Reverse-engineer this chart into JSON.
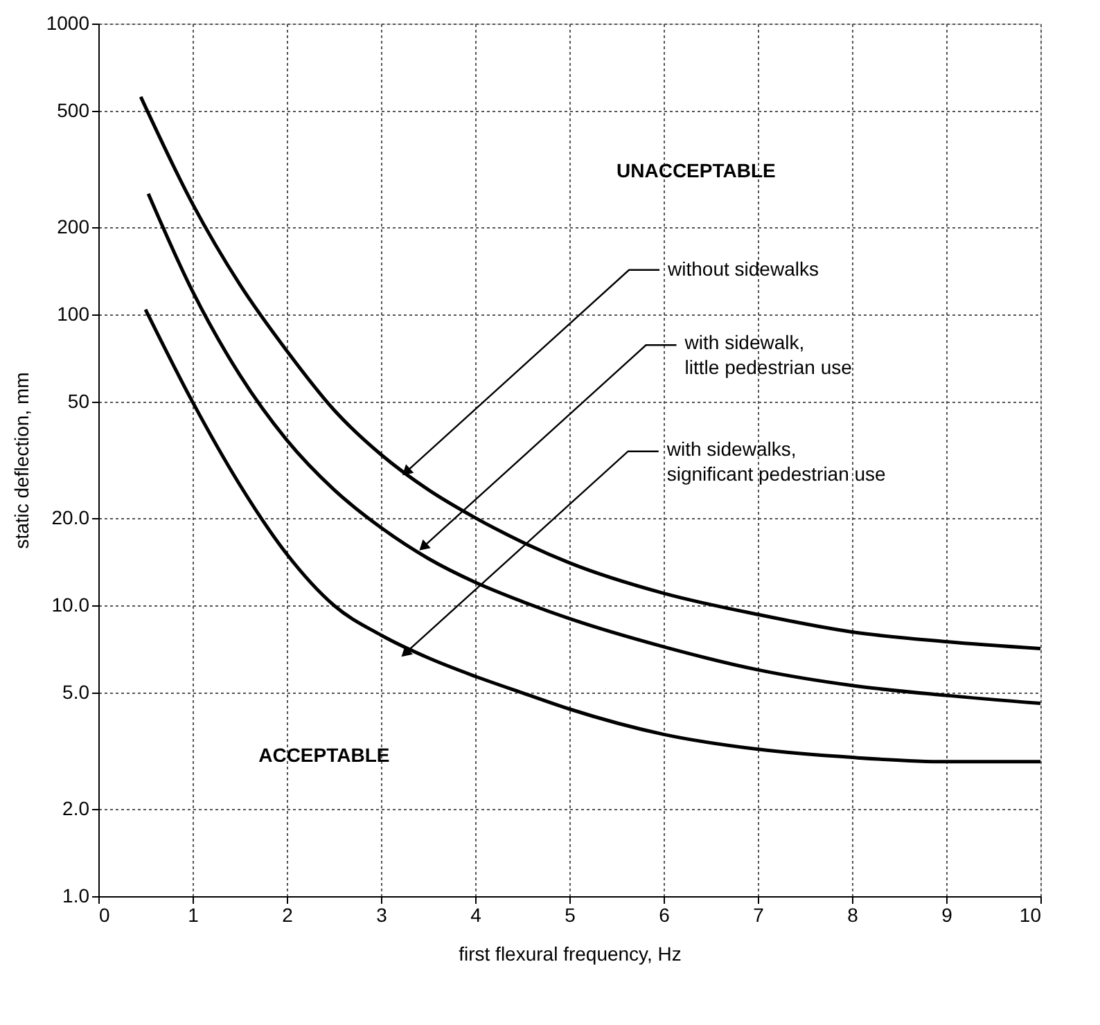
{
  "chart_data": {
    "type": "line",
    "xlabel": "first flexural frequency, Hz",
    "ylabel": "static deflection, mm",
    "x": [
      0.45,
      1,
      1.5,
      2,
      2.5,
      3,
      3.5,
      4,
      4.5,
      5,
      6,
      7,
      8,
      9,
      10
    ],
    "series": [
      {
        "color": "#000000",
        "values": [
          560,
          240,
          127,
          75,
          47,
          33,
          25,
          20,
          16.5,
          14,
          11,
          9.3,
          8.1,
          7.5,
          7.1
        ]
      },
      {
        "color": "#000000",
        "x": [
          0.53,
          1,
          1.5,
          2,
          2.5,
          3,
          3.5,
          4,
          4.5,
          5,
          6,
          7,
          8,
          9,
          10
        ],
        "values": [
          260,
          120,
          62,
          37,
          25,
          18.5,
          14.5,
          12,
          10.3,
          9.0,
          7.2,
          6.0,
          5.3,
          4.9,
          4.6
        ]
      },
      {
        "color": "#000000",
        "x": [
          0.5,
          1,
          1.5,
          2,
          2.5,
          3,
          3.5,
          4,
          4.5,
          5,
          6,
          7,
          8,
          9,
          10
        ],
        "values": [
          104,
          50,
          26,
          15,
          10,
          7.9,
          6.6,
          5.7,
          5.0,
          4.4,
          3.6,
          3.2,
          3.0,
          2.9,
          2.9
        ]
      }
    ],
    "xlim": [
      0,
      10
    ],
    "xticks": [
      0,
      1,
      2,
      3,
      4,
      5,
      6,
      7,
      8,
      9,
      10
    ],
    "ylim": [
      1,
      1000
    ],
    "log": true,
    "yticks": [
      {
        "value": 1,
        "label": "1.0"
      },
      {
        "value": 2,
        "label": "2.0"
      },
      {
        "value": 5,
        "label": "5.0"
      },
      {
        "value": 10,
        "label": "10.0"
      },
      {
        "value": 20,
        "label": "20.0"
      },
      50,
      100,
      200,
      500,
      1000
    ],
    "grid": true,
    "line_style": "solid",
    "marker": "none",
    "annotations": [
      "UNACCEPTABLE",
      {
        "text": "without sidewalks",
        "x": 3.28,
        "y": 29
      },
      {
        "text": "with sidewalk,\nlittle pedestrian use",
        "x": 3.46,
        "y": 16
      },
      {
        "text": "with sidewalks,\nsignificant pedestrian use",
        "x": 3.27,
        "y": 6.9
      },
      "ACCEPTABLE"
    ]
  }
}
